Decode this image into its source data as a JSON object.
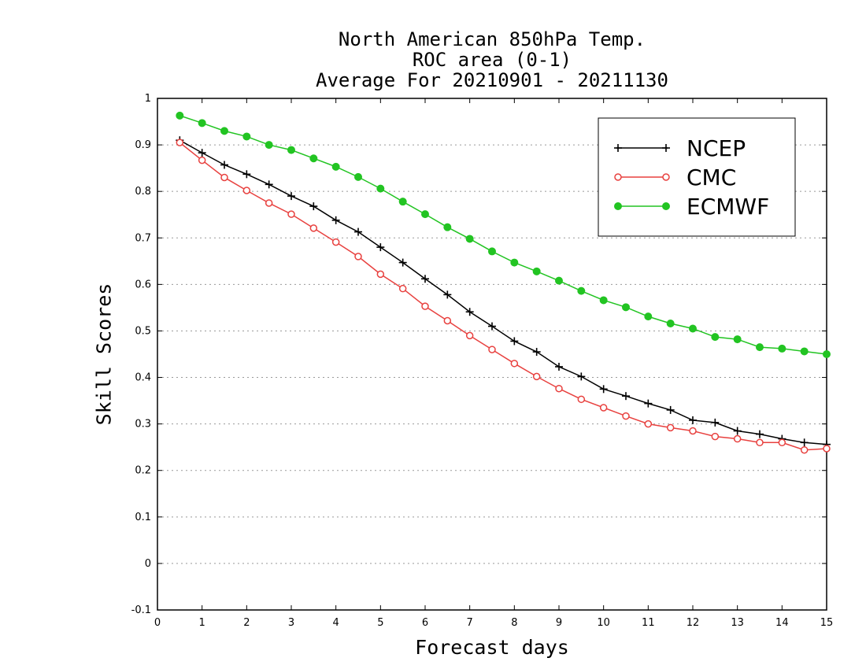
{
  "chart_data": {
    "type": "line",
    "title_lines": [
      "North American 850hPa Temp.",
      "ROC area (0-1)",
      "Average For 20210901 - 20211130"
    ],
    "xlabel": "Forecast days",
    "ylabel": "Skill Scores",
    "xlim": [
      0,
      15
    ],
    "ylim": [
      -0.1,
      1
    ],
    "x_ticks": [
      "0",
      "1",
      "2",
      "3",
      "4",
      "5",
      "6",
      "7",
      "8",
      "9",
      "10",
      "11",
      "12",
      "13",
      "14",
      "15"
    ],
    "y_ticks": [
      "-0.1",
      "0",
      "0.1",
      "0.2",
      "0.3",
      "0.4",
      "0.5",
      "0.6",
      "0.7",
      "0.8",
      "0.9",
      "1"
    ],
    "grid": "horizontal dotted",
    "legend_position": "top-right",
    "x": [
      0.5,
      1,
      1.5,
      2,
      2.5,
      3,
      3.5,
      4,
      4.5,
      5,
      5.5,
      6,
      6.5,
      7,
      7.5,
      8,
      8.5,
      9,
      9.5,
      10,
      10.5,
      11,
      11.5,
      12,
      12.5,
      13,
      13.5,
      14,
      14.5,
      15
    ],
    "series": [
      {
        "name": "NCEP",
        "color": "#000000",
        "marker": "plus",
        "values": [
          0.91,
          0.883,
          0.857,
          0.837,
          0.815,
          0.79,
          0.768,
          0.738,
          0.713,
          0.68,
          0.647,
          0.612,
          0.578,
          0.541,
          0.51,
          0.478,
          0.455,
          0.423,
          0.402,
          0.375,
          0.36,
          0.344,
          0.33,
          0.308,
          0.303,
          0.285,
          0.278,
          0.268,
          0.26,
          0.256
        ]
      },
      {
        "name": "CMC",
        "color": "#e8413f",
        "marker": "open-circle",
        "values": [
          0.905,
          0.867,
          0.83,
          0.802,
          0.775,
          0.751,
          0.721,
          0.691,
          0.66,
          0.622,
          0.591,
          0.553,
          0.522,
          0.49,
          0.46,
          0.43,
          0.402,
          0.376,
          0.353,
          0.335,
          0.317,
          0.3,
          0.292,
          0.285,
          0.273,
          0.268,
          0.26,
          0.26,
          0.244,
          0.247
        ]
      },
      {
        "name": "ECMWF",
        "color": "#22c422",
        "marker": "filled-circle",
        "values": [
          0.963,
          0.947,
          0.93,
          0.918,
          0.9,
          0.889,
          0.871,
          0.853,
          0.831,
          0.806,
          0.778,
          0.751,
          0.723,
          0.698,
          0.671,
          0.647,
          0.628,
          0.608,
          0.586,
          0.566,
          0.551,
          0.531,
          0.516,
          0.505,
          0.487,
          0.482,
          0.465,
          0.462,
          0.456,
          0.45
        ]
      }
    ]
  }
}
